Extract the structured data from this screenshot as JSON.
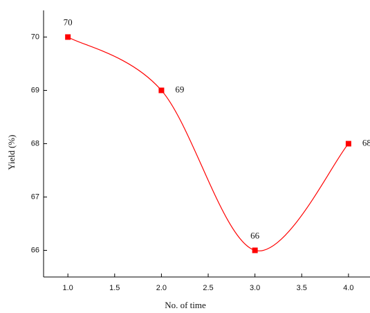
{
  "chart_data": {
    "type": "line",
    "x_label": "No. of time",
    "y_label": "Yield (%)",
    "x": [
      1,
      2,
      3,
      4
    ],
    "series": [
      {
        "color": "#ff0000",
        "values": [
          70,
          69,
          66,
          68
        ]
      }
    ],
    "xlim": [
      0.74,
      4.23
    ],
    "ylim": [
      65.5,
      70.5
    ],
    "xticks": [
      {
        "value": 1,
        "label": "1.0"
      },
      {
        "value": 1.5,
        "label": "1.5"
      },
      {
        "value": 2,
        "label": "2.0"
      },
      {
        "value": 2.5,
        "label": "2.5"
      },
      {
        "value": 3,
        "label": "3.0"
      },
      {
        "value": 3.5,
        "label": "3.5"
      },
      {
        "value": 4,
        "label": "4.0"
      }
    ],
    "yticks": [
      66,
      67,
      68,
      69,
      70
    ],
    "smooth": true,
    "data_labels": true
  }
}
